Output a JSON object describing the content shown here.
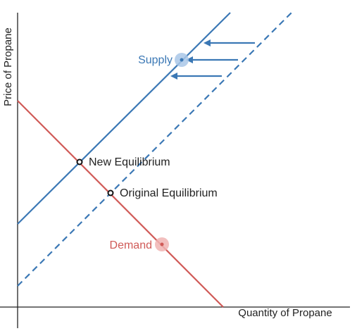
{
  "axes": {
    "x_label": "Quantity of Propane",
    "y_label": "Price of Propane"
  },
  "curves": {
    "supply_label": "Supply",
    "demand_label": "Demand"
  },
  "points": {
    "new_equilibrium_label": "New Equilibrium",
    "original_equilibrium_label": "Original Equilibrium"
  },
  "shift_direction": "left",
  "colors": {
    "supply": "#3b78b5",
    "demand": "#d05a57",
    "supply_handle": "#a9c7e8",
    "demand_handle": "#f0b4b3",
    "axis": "#222222",
    "point_fill": "#ffffff",
    "point_stroke": "#111111"
  }
}
